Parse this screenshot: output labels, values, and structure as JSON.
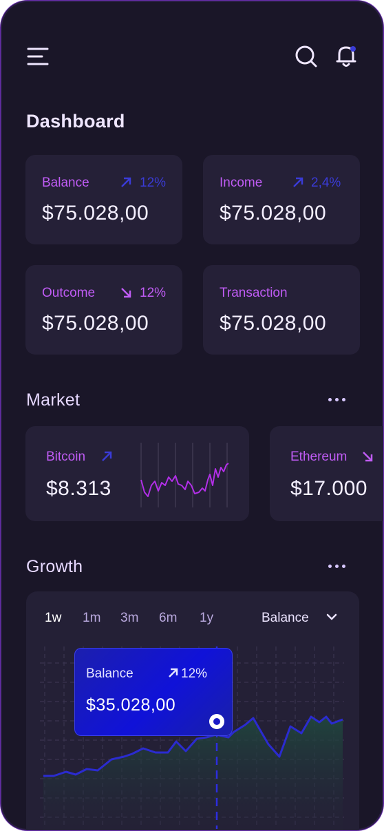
{
  "header": {
    "menu_icon": "menu-icon",
    "search_icon": "search-icon",
    "bell_icon": "bell-icon"
  },
  "page_title": "Dashboard",
  "stats": [
    {
      "label": "Balance",
      "change": "12%",
      "direction": "up",
      "value": "$75.028,00"
    },
    {
      "label": "Income",
      "change": "2,4%",
      "direction": "up",
      "value": "$75.028,00"
    },
    {
      "label": "Outcome",
      "change": "12%",
      "direction": "down",
      "value": "$75.028,00"
    },
    {
      "label": "Transaction",
      "change": "",
      "direction": "",
      "value": "$75.028,00"
    }
  ],
  "market": {
    "title": "Market",
    "items": [
      {
        "name": "Bitcoin",
        "direction": "up",
        "price": "$8.313"
      },
      {
        "name": "Ethereum",
        "direction": "down",
        "price": "$17.000"
      }
    ]
  },
  "growth": {
    "title": "Growth",
    "tabs": [
      "1w",
      "1m",
      "3m",
      "6m",
      "1y"
    ],
    "active_tab": "1w",
    "selector": "Balance",
    "tooltip": {
      "label": "Balance",
      "change": "12%",
      "value": "$35.028,00"
    }
  },
  "colors": {
    "background": "#1a1628",
    "card": "#252037",
    "accent_purple": "#c05cf5",
    "accent_blue": "#3a3bd6",
    "tooltip_blue": "#1012d8",
    "chart_line": "#2b2bd0"
  }
}
